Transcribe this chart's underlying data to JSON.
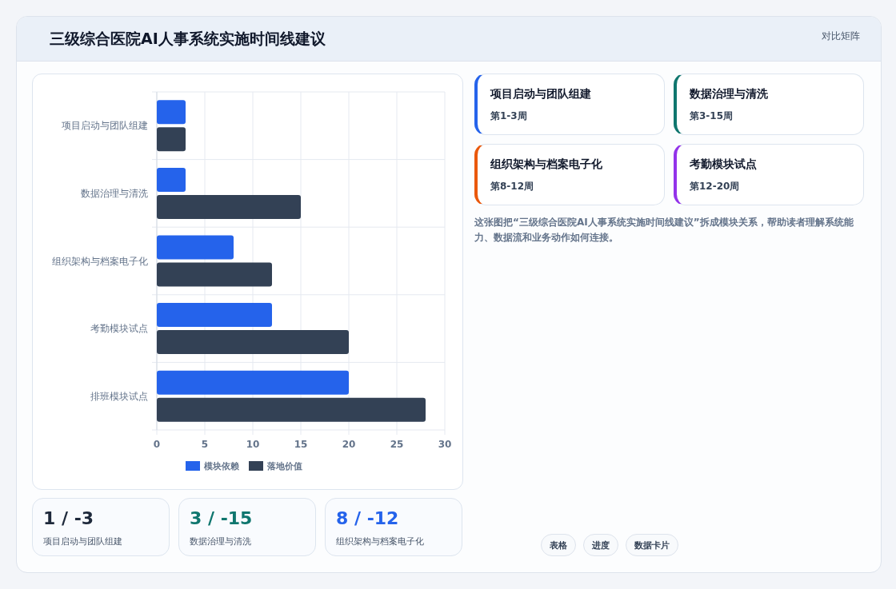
{
  "chart_data": [
    {
      "type": "bar",
      "orientation": "horizontal",
      "title": "三级综合医院AI人事系统实施时间线建议",
      "categories": [
        "项目启动与团队组建",
        "数据治理与清洗",
        "组织架构与档案电子化",
        "考勤模块试点",
        "排班模块试点"
      ],
      "series": [
        {
          "name": "模块依赖",
          "color": "#2563eb",
          "values": [
            3,
            3,
            8,
            12,
            20
          ]
        },
        {
          "name": "落地价值",
          "color": "#334155",
          "values": [
            3,
            15,
            12,
            20,
            28
          ]
        }
      ],
      "xlim": [
        0,
        30
      ],
      "xticks": [
        0,
        5,
        10,
        15,
        20,
        25,
        30
      ],
      "grid": true,
      "legend": "bottom"
    },
    {
      "type": "other",
      "annotations": [
        "对比矩阵",
        "项目启动与团队组建",
        "第1-3周",
        "数据治理与清洗",
        "第3-15周",
        "组织架构与档案电子化",
        "第8-12周",
        "考勤模块试点",
        "第12-20周",
        "这张图把“三级综合医院AI人事系统实施时间线建议”拆成模块关系，帮助读者理解系统能力、数据流和业务动作如何连接。",
        "表格",
        "进度",
        "数据卡片"
      ]
    },
    {
      "type": "other",
      "annotations": [
        "1 / -3",
        "项目启动与团队组建",
        "3 / -15",
        "数据治理与清洗",
        "8 / -12",
        "组织架构与档案电子化"
      ]
    }
  ]
}
